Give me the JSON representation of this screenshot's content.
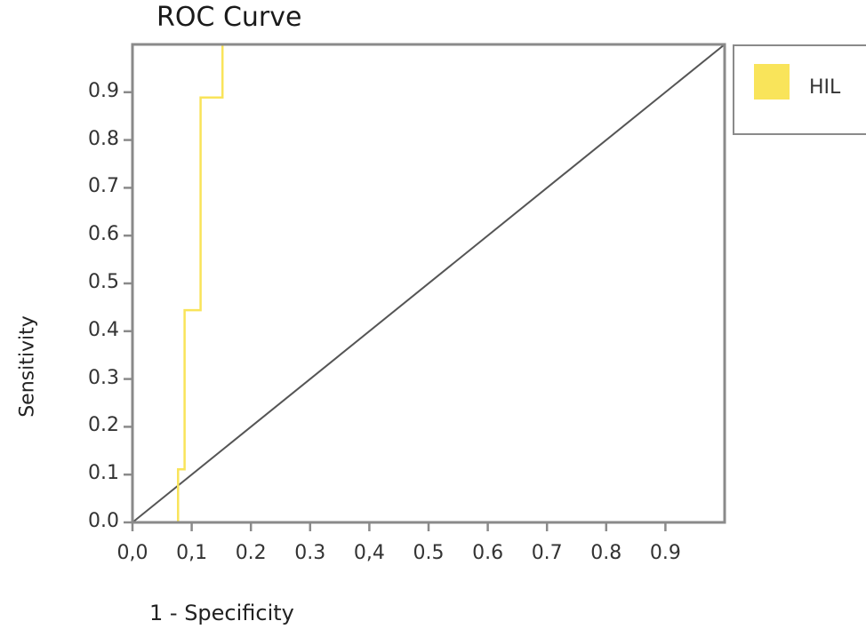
{
  "chart_data": {
    "type": "line",
    "title": "ROC Curve",
    "xlabel": "1 - Specificity",
    "ylabel": "Sensitivity",
    "xlim": [
      0,
      1
    ],
    "ylim": [
      0,
      1
    ],
    "grid": false,
    "legend_position": "right",
    "x_tick_labels": [
      "0,0",
      "0,1",
      "0.2",
      "0.3",
      "0,4",
      "0.5",
      "0.6",
      "0.7",
      "0.8",
      "0.9"
    ],
    "y_tick_labels": [
      "0.0",
      "0.1",
      "0.2",
      "0.3",
      "0.4",
      "0.5",
      "0.6",
      "0.7",
      "0.8",
      "0.9"
    ],
    "series": [
      {
        "name": "HIL",
        "color": "#f9e45a",
        "x": [
          0.0,
          0.077,
          0.077,
          0.088,
          0.088,
          0.115,
          0.115,
          0.152,
          0.152,
          1.0
        ],
        "y": [
          0.0,
          0.0,
          0.111,
          0.111,
          0.444,
          0.444,
          0.889,
          0.889,
          1.0,
          1.0
        ]
      },
      {
        "name": "Reference (diagonal)",
        "color": "#555555",
        "x": [
          0.0,
          1.0
        ],
        "y": [
          0.0,
          1.0
        ]
      }
    ]
  },
  "legend": {
    "items": [
      {
        "label": "HIL",
        "color": "#f9e45a"
      }
    ]
  },
  "colors": {
    "axis": "#8a8a8a",
    "diagonal": "#555555",
    "curve": "#f9e45a"
  }
}
